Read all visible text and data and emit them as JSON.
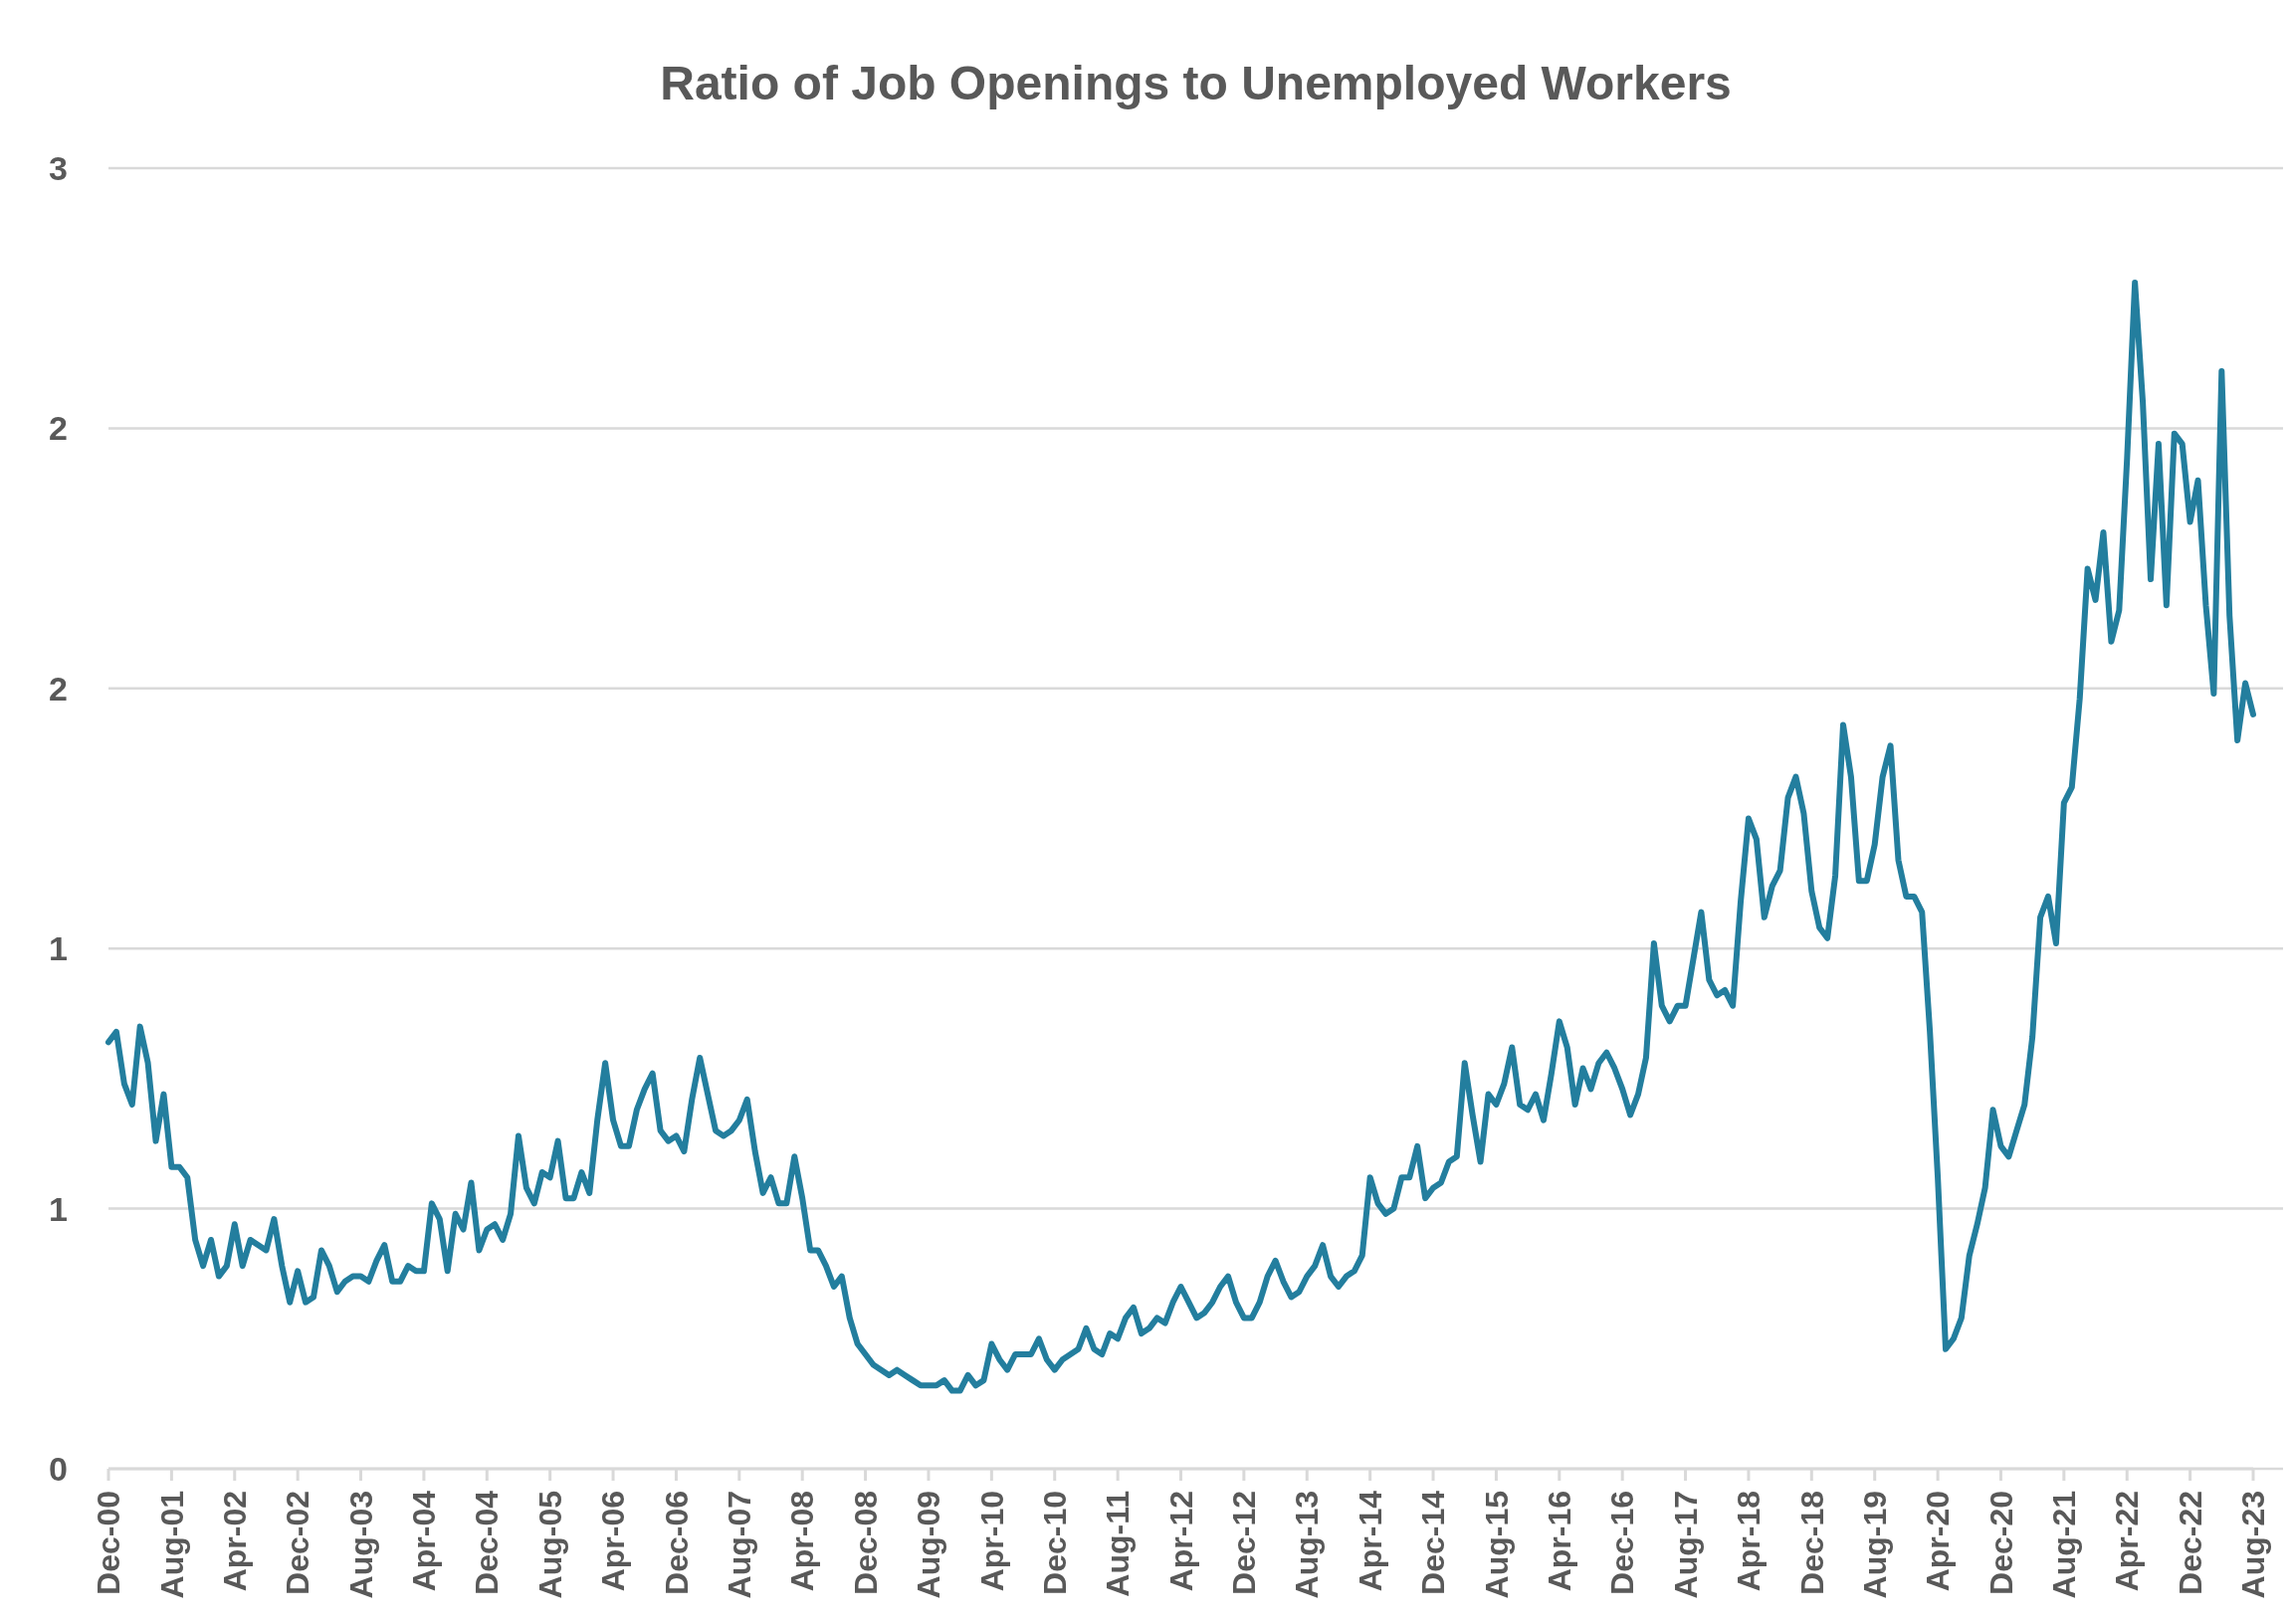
{
  "chart_data": {
    "type": "line",
    "title": "Ratio of Job Openings to Unemployed Workers",
    "categories": [
      "Dec-00",
      null,
      null,
      null,
      null,
      null,
      null,
      null,
      "Aug-01",
      null,
      null,
      null,
      null,
      null,
      null,
      null,
      "Apr-02",
      null,
      null,
      null,
      null,
      null,
      null,
      null,
      "Dec-02",
      null,
      null,
      null,
      null,
      null,
      null,
      null,
      "Aug-03",
      null,
      null,
      null,
      null,
      null,
      null,
      null,
      "Apr-04",
      null,
      null,
      null,
      null,
      null,
      null,
      null,
      "Dec-04",
      null,
      null,
      null,
      null,
      null,
      null,
      null,
      "Aug-05",
      null,
      null,
      null,
      null,
      null,
      null,
      null,
      "Apr-06",
      null,
      null,
      null,
      null,
      null,
      null,
      null,
      "Dec-06",
      null,
      null,
      null,
      null,
      null,
      null,
      null,
      "Aug-07",
      null,
      null,
      null,
      null,
      null,
      null,
      null,
      "Apr-08",
      null,
      null,
      null,
      null,
      null,
      null,
      null,
      "Dec-08",
      null,
      null,
      null,
      null,
      null,
      null,
      null,
      "Aug-09",
      null,
      null,
      null,
      null,
      null,
      null,
      null,
      "Apr-10",
      null,
      null,
      null,
      null,
      null,
      null,
      null,
      "Dec-10",
      null,
      null,
      null,
      null,
      null,
      null,
      null,
      "Aug-11",
      null,
      null,
      null,
      null,
      null,
      null,
      null,
      "Apr-12",
      null,
      null,
      null,
      null,
      null,
      null,
      null,
      "Dec-12",
      null,
      null,
      null,
      null,
      null,
      null,
      null,
      "Aug-13",
      null,
      null,
      null,
      null,
      null,
      null,
      null,
      "Apr-14",
      null,
      null,
      null,
      null,
      null,
      null,
      null,
      "Dec-14",
      null,
      null,
      null,
      null,
      null,
      null,
      null,
      "Aug-15",
      null,
      null,
      null,
      null,
      null,
      null,
      null,
      "Apr-16",
      null,
      null,
      null,
      null,
      null,
      null,
      null,
      "Dec-16",
      null,
      null,
      null,
      null,
      null,
      null,
      null,
      "Aug-17",
      null,
      null,
      null,
      null,
      null,
      null,
      null,
      "Apr-18",
      null,
      null,
      null,
      null,
      null,
      null,
      null,
      "Dec-18",
      null,
      null,
      null,
      null,
      null,
      null,
      null,
      "Aug-19",
      null,
      null,
      null,
      null,
      null,
      null,
      null,
      "Apr-20",
      null,
      null,
      null,
      null,
      null,
      null,
      null,
      "Dec-20",
      null,
      null,
      null,
      null,
      null,
      null,
      null,
      "Aug-21",
      null,
      null,
      null,
      null,
      null,
      null,
      null,
      "Apr-22",
      null,
      null,
      null,
      null,
      null,
      null,
      null,
      "Dec-22",
      null,
      null,
      null,
      null,
      null,
      null,
      null,
      "Aug-23"
    ],
    "series": [
      {
        "color": "#237e9e",
        "values": [
          0.82,
          0.84,
          0.74,
          0.7,
          0.85,
          0.78,
          0.63,
          0.72,
          0.58,
          0.58,
          0.56,
          0.44,
          0.39,
          0.44,
          0.37,
          0.39,
          0.47,
          0.39,
          0.44,
          0.43,
          0.42,
          0.48,
          0.39,
          0.32,
          0.38,
          0.32,
          0.33,
          0.42,
          0.39,
          0.34,
          0.36,
          0.37,
          0.37,
          0.36,
          0.4,
          0.43,
          0.36,
          0.36,
          0.39,
          0.38,
          0.38,
          0.51,
          0.48,
          0.38,
          0.49,
          0.46,
          0.55,
          0.42,
          0.46,
          0.47,
          0.44,
          0.49,
          0.64,
          0.54,
          0.51,
          0.57,
          0.56,
          0.63,
          0.52,
          0.52,
          0.57,
          0.53,
          0.67,
          0.78,
          0.67,
          0.62,
          0.62,
          0.69,
          0.73,
          0.76,
          0.65,
          0.63,
          0.64,
          0.61,
          0.71,
          0.79,
          0.72,
          0.65,
          0.64,
          0.65,
          0.67,
          0.71,
          0.61,
          0.53,
          0.56,
          0.51,
          0.51,
          0.6,
          0.52,
          0.42,
          0.42,
          0.39,
          0.35,
          0.37,
          0.29,
          0.24,
          0.22,
          0.2,
          0.19,
          0.18,
          0.19,
          0.18,
          0.17,
          0.16,
          0.16,
          0.16,
          0.17,
          0.15,
          0.15,
          0.18,
          0.16,
          0.17,
          0.24,
          0.21,
          0.19,
          0.22,
          0.22,
          0.22,
          0.25,
          0.21,
          0.19,
          0.21,
          0.22,
          0.23,
          0.27,
          0.23,
          0.22,
          0.26,
          0.25,
          0.29,
          0.31,
          0.26,
          0.27,
          0.29,
          0.28,
          0.32,
          0.35,
          0.32,
          0.29,
          0.3,
          0.32,
          0.35,
          0.37,
          0.32,
          0.29,
          0.29,
          0.32,
          0.37,
          0.4,
          0.36,
          0.33,
          0.34,
          0.37,
          0.39,
          0.43,
          0.37,
          0.35,
          0.37,
          0.38,
          0.41,
          0.56,
          0.51,
          0.49,
          0.5,
          0.56,
          0.56,
          0.62,
          0.52,
          0.54,
          0.55,
          0.59,
          0.6,
          0.78,
          0.68,
          0.59,
          0.72,
          0.7,
          0.74,
          0.81,
          0.7,
          0.69,
          0.72,
          0.67,
          0.76,
          0.86,
          0.81,
          0.7,
          0.77,
          0.73,
          0.78,
          0.8,
          0.77,
          0.73,
          0.68,
          0.72,
          0.79,
          1.01,
          0.89,
          0.86,
          0.89,
          0.89,
          0.98,
          1.07,
          0.94,
          0.91,
          0.92,
          0.89,
          1.09,
          1.25,
          1.21,
          1.06,
          1.12,
          1.15,
          1.29,
          1.33,
          1.26,
          1.11,
          1.04,
          1.02,
          1.14,
          1.43,
          1.33,
          1.13,
          1.13,
          1.2,
          1.33,
          1.39,
          1.17,
          1.1,
          1.1,
          1.07,
          0.84,
          0.56,
          0.23,
          0.25,
          0.29,
          0.41,
          0.47,
          0.54,
          0.69,
          0.62,
          0.6,
          0.65,
          0.7,
          0.83,
          1.06,
          1.1,
          1.01,
          1.28,
          1.31,
          1.48,
          1.73,
          1.67,
          1.8,
          1.59,
          1.65,
          1.94,
          2.28,
          2.05,
          1.71,
          1.97,
          1.66,
          1.99,
          1.97,
          1.82,
          1.9,
          1.66,
          1.49,
          2.11,
          1.64,
          1.4,
          1.51,
          1.45
        ]
      }
    ],
    "ylim": [
      0,
      2.5
    ],
    "yticks": [
      0,
      {
        "value": 0.5,
        "label": "1"
      },
      1,
      {
        "value": 1.5,
        "label": "2"
      },
      2,
      {
        "value": 2.5,
        "label": "3"
      }
    ],
    "grid": "y",
    "marker": "none",
    "line_style": "solid"
  }
}
